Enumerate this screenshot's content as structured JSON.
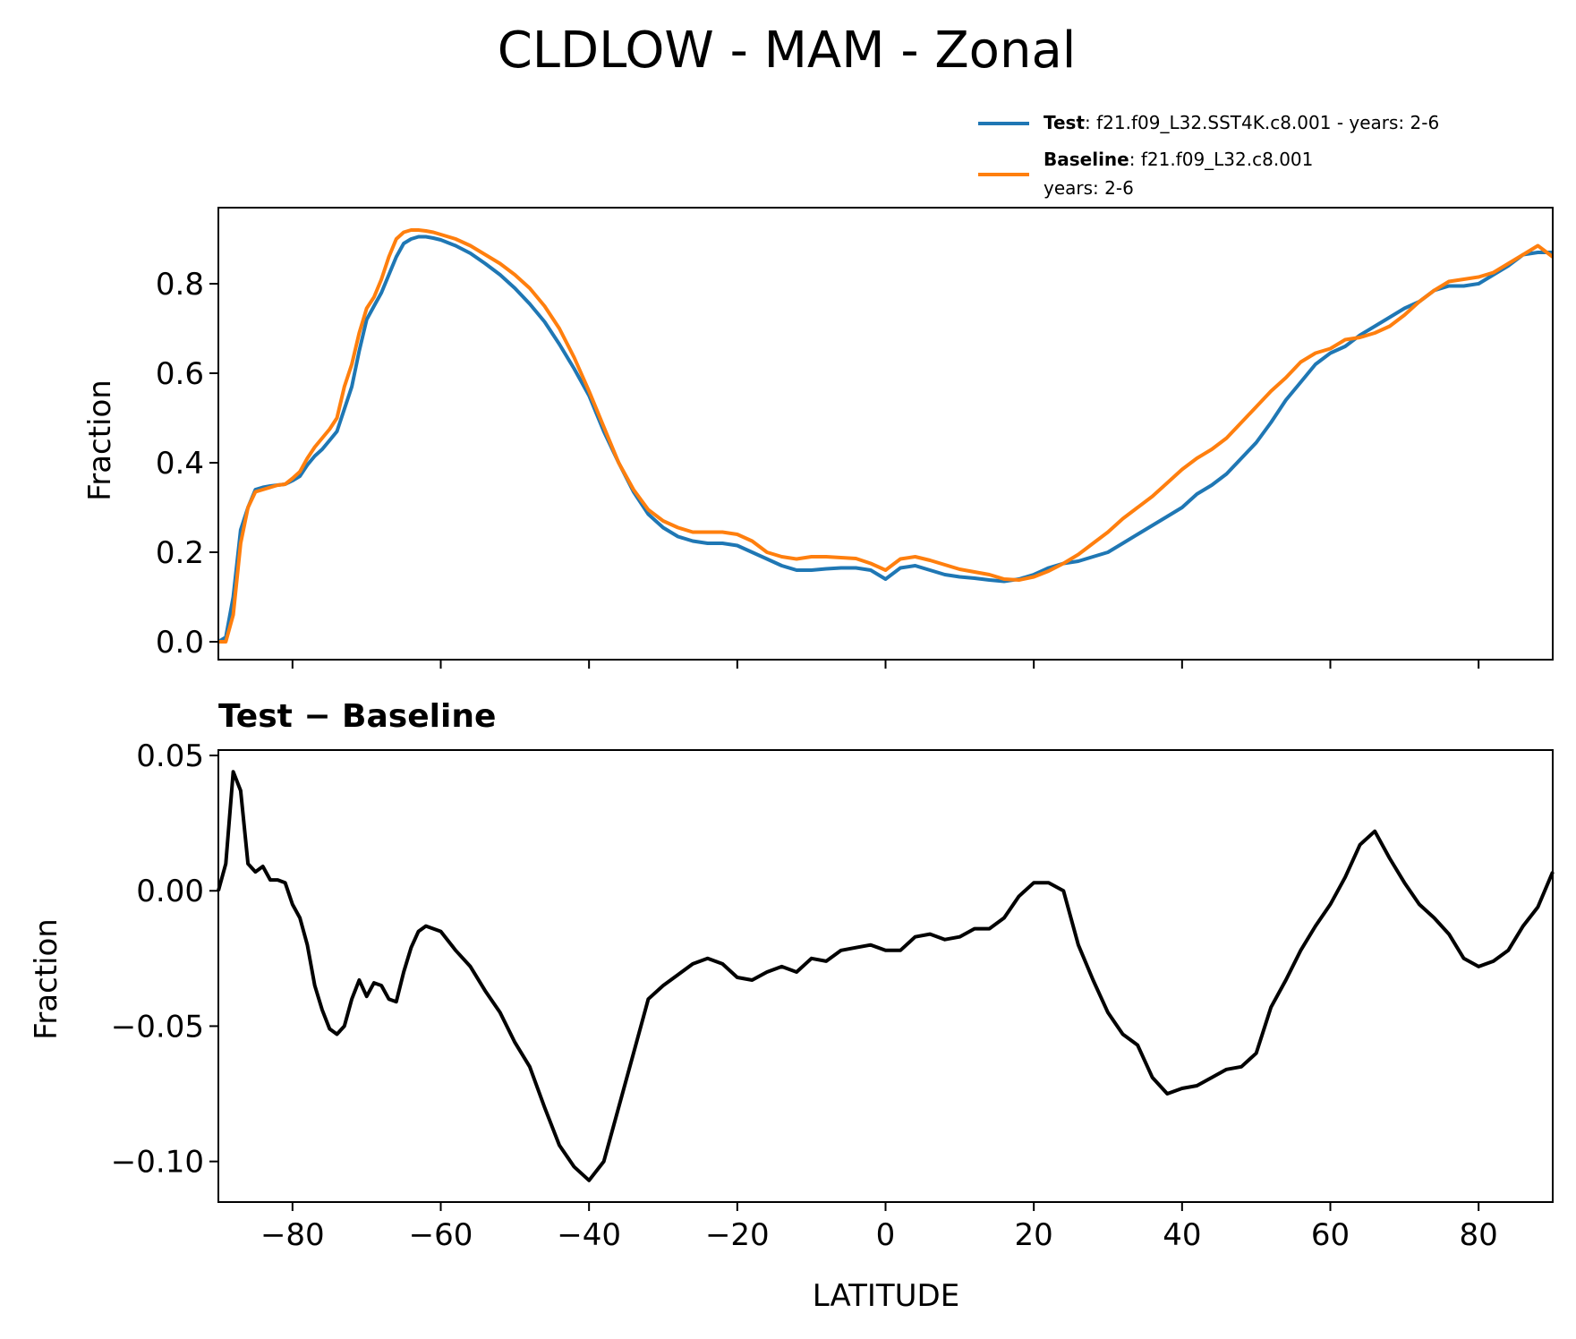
{
  "title": "CLDLOW - MAM - Zonal",
  "legend": {
    "test_label": "Test",
    "test_desc": ": f21.f09_L32.SST4K.c8.001 - years: 2-6",
    "baseline_label": "Baseline",
    "baseline_desc": ": f21.f09_L32.c8.001",
    "baseline_desc2": "years: 2-6"
  },
  "colors": {
    "test": "#1f77b4",
    "baseline": "#ff7f0e",
    "diff": "#000000"
  },
  "chart_data": [
    {
      "type": "line",
      "title": "CLDLOW - MAM - Zonal",
      "xlabel": "",
      "ylabel": "Fraction",
      "xlim": [
        -90,
        90
      ],
      "ylim": [
        -0.04,
        0.97
      ],
      "yticks": [
        "0.0",
        "0.2",
        "0.4",
        "0.6",
        "0.8"
      ],
      "ytick_values": [
        0.0,
        0.2,
        0.4,
        0.6,
        0.8
      ],
      "xtick_values": [
        -80,
        -60,
        -40,
        -20,
        0,
        20,
        40,
        60,
        80
      ],
      "legend_position": "top-right",
      "grid": false,
      "x": [
        -90,
        -89,
        -88,
        -87,
        -86,
        -85,
        -84,
        -83,
        -82,
        -81,
        -80,
        -79,
        -78,
        -77,
        -76,
        -75,
        -74,
        -73,
        -72,
        -71,
        -70,
        -69,
        -68,
        -67,
        -66,
        -65,
        -64,
        -63,
        -62,
        -61,
        -60,
        -58,
        -56,
        -54,
        -52,
        -50,
        -48,
        -46,
        -44,
        -42,
        -40,
        -38,
        -36,
        -34,
        -32,
        -30,
        -28,
        -26,
        -24,
        -22,
        -20,
        -18,
        -16,
        -14,
        -12,
        -10,
        -8,
        -6,
        -4,
        -2,
        0,
        2,
        4,
        6,
        8,
        10,
        12,
        14,
        16,
        18,
        20,
        22,
        24,
        26,
        28,
        30,
        32,
        34,
        36,
        38,
        40,
        42,
        44,
        46,
        48,
        50,
        52,
        54,
        56,
        58,
        60,
        62,
        64,
        66,
        68,
        70,
        72,
        74,
        76,
        78,
        80,
        82,
        84,
        86,
        88,
        90
      ],
      "series": [
        {
          "name": "Test",
          "values": [
            0.0,
            0.01,
            0.1,
            0.25,
            0.3,
            0.34,
            0.345,
            0.348,
            0.35,
            0.352,
            0.36,
            0.37,
            0.395,
            0.415,
            0.43,
            0.45,
            0.47,
            0.52,
            0.57,
            0.65,
            0.72,
            0.75,
            0.78,
            0.82,
            0.86,
            0.89,
            0.9,
            0.905,
            0.905,
            0.902,
            0.898,
            0.885,
            0.868,
            0.845,
            0.82,
            0.79,
            0.755,
            0.715,
            0.665,
            0.61,
            0.55,
            0.47,
            0.4,
            0.335,
            0.285,
            0.255,
            0.235,
            0.225,
            0.22,
            0.22,
            0.215,
            0.2,
            0.185,
            0.17,
            0.16,
            0.16,
            0.163,
            0.165,
            0.165,
            0.16,
            0.14,
            0.165,
            0.17,
            0.16,
            0.15,
            0.145,
            0.142,
            0.138,
            0.135,
            0.14,
            0.15,
            0.165,
            0.175,
            0.18,
            0.19,
            0.2,
            0.22,
            0.24,
            0.26,
            0.28,
            0.3,
            0.33,
            0.35,
            0.375,
            0.41,
            0.445,
            0.49,
            0.54,
            0.58,
            0.62,
            0.645,
            0.66,
            0.685,
            0.705,
            0.725,
            0.745,
            0.76,
            0.785,
            0.795,
            0.795,
            0.8,
            0.82,
            0.84,
            0.865,
            0.87,
            0.87
          ]
        },
        {
          "name": "Baseline",
          "values": [
            0.0,
            0.0,
            0.06,
            0.22,
            0.3,
            0.335,
            0.34,
            0.345,
            0.35,
            0.352,
            0.365,
            0.38,
            0.41,
            0.435,
            0.455,
            0.475,
            0.5,
            0.57,
            0.62,
            0.69,
            0.745,
            0.77,
            0.81,
            0.86,
            0.9,
            0.915,
            0.92,
            0.92,
            0.918,
            0.915,
            0.91,
            0.9,
            0.885,
            0.865,
            0.845,
            0.82,
            0.79,
            0.75,
            0.7,
            0.635,
            0.56,
            0.48,
            0.4,
            0.34,
            0.295,
            0.27,
            0.255,
            0.245,
            0.245,
            0.245,
            0.24,
            0.225,
            0.2,
            0.19,
            0.185,
            0.19,
            0.19,
            0.188,
            0.186,
            0.175,
            0.16,
            0.185,
            0.19,
            0.182,
            0.172,
            0.162,
            0.156,
            0.15,
            0.14,
            0.138,
            0.145,
            0.158,
            0.175,
            0.195,
            0.22,
            0.245,
            0.275,
            0.3,
            0.325,
            0.355,
            0.385,
            0.41,
            0.43,
            0.455,
            0.49,
            0.525,
            0.56,
            0.59,
            0.625,
            0.645,
            0.655,
            0.675,
            0.68,
            0.69,
            0.705,
            0.73,
            0.76,
            0.785,
            0.805,
            0.81,
            0.815,
            0.825,
            0.845,
            0.865,
            0.885,
            0.86
          ]
        }
      ]
    },
    {
      "type": "line",
      "title": "Test − Baseline",
      "xlabel": "LATITUDE",
      "ylabel": "Fraction",
      "xlim": [
        -90,
        90
      ],
      "ylim": [
        -0.115,
        0.052
      ],
      "yticks": [
        "0.05",
        "0.00",
        "−0.05",
        "−0.10"
      ],
      "ytick_values": [
        0.05,
        0.0,
        -0.05,
        -0.1
      ],
      "xticks": [
        "−80",
        "−60",
        "−40",
        "−20",
        "0",
        "20",
        "40",
        "60",
        "80"
      ],
      "xtick_values": [
        -80,
        -60,
        -40,
        -20,
        0,
        20,
        40,
        60,
        80
      ],
      "grid": false,
      "x": [
        -90,
        -89,
        -88,
        -87,
        -86,
        -85,
        -84,
        -83,
        -82,
        -81,
        -80,
        -79,
        -78,
        -77,
        -76,
        -75,
        -74,
        -73,
        -72,
        -71,
        -70,
        -69,
        -68,
        -67,
        -66,
        -65,
        -64,
        -63,
        -62,
        -61,
        -60,
        -58,
        -56,
        -54,
        -52,
        -50,
        -48,
        -46,
        -44,
        -42,
        -40,
        -38,
        -36,
        -34,
        -32,
        -30,
        -28,
        -26,
        -24,
        -22,
        -20,
        -18,
        -16,
        -14,
        -12,
        -10,
        -8,
        -6,
        -4,
        -2,
        0,
        2,
        4,
        6,
        8,
        10,
        12,
        14,
        16,
        18,
        20,
        22,
        24,
        26,
        28,
        30,
        32,
        34,
        36,
        38,
        40,
        42,
        44,
        46,
        48,
        50,
        52,
        54,
        56,
        58,
        60,
        62,
        64,
        66,
        68,
        70,
        72,
        74,
        76,
        78,
        80,
        82,
        84,
        86,
        88,
        90
      ],
      "series": [
        {
          "name": "Test − Baseline",
          "values": [
            0.0,
            0.01,
            0.044,
            0.037,
            0.01,
            0.007,
            0.009,
            0.004,
            0.004,
            0.003,
            -0.005,
            -0.01,
            -0.02,
            -0.035,
            -0.044,
            -0.051,
            -0.053,
            -0.05,
            -0.04,
            -0.033,
            -0.039,
            -0.034,
            -0.035,
            -0.04,
            -0.041,
            -0.03,
            -0.021,
            -0.015,
            -0.013,
            -0.014,
            -0.015,
            -0.022,
            -0.028,
            -0.037,
            -0.045,
            -0.056,
            -0.065,
            -0.08,
            -0.094,
            -0.102,
            -0.107,
            -0.1,
            -0.08,
            -0.06,
            -0.04,
            -0.035,
            -0.031,
            -0.027,
            -0.025,
            -0.027,
            -0.032,
            -0.033,
            -0.03,
            -0.028,
            -0.03,
            -0.025,
            -0.026,
            -0.022,
            -0.021,
            -0.02,
            -0.022,
            -0.022,
            -0.017,
            -0.016,
            -0.018,
            -0.017,
            -0.014,
            -0.014,
            -0.01,
            -0.002,
            0.003,
            0.003,
            0.0,
            -0.02,
            -0.033,
            -0.045,
            -0.053,
            -0.057,
            -0.069,
            -0.075,
            -0.073,
            -0.072,
            -0.069,
            -0.066,
            -0.065,
            -0.06,
            -0.043,
            -0.033,
            -0.022,
            -0.013,
            -0.005,
            0.005,
            0.017,
            0.022,
            0.012,
            0.003,
            -0.005,
            -0.01,
            -0.016,
            -0.025,
            -0.028,
            -0.026,
            -0.022,
            -0.013,
            -0.006,
            0.007
          ]
        }
      ]
    }
  ]
}
